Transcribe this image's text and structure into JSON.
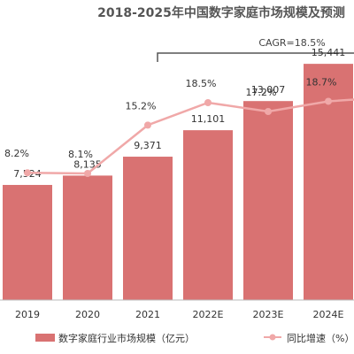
{
  "chart_data": {
    "type": "bar+line",
    "title": "2018-2025年中国数字家庭市场规模及预测",
    "categories": [
      "2019",
      "2020",
      "2021",
      "2022E",
      "2023E",
      "2024E"
    ],
    "series": [
      {
        "name": "数字家庭行业市场规模（亿元）",
        "type": "bar",
        "values": [
          7524,
          8135,
          9371,
          11101,
          13007,
          15441
        ],
        "value_labels": [
          "7,524",
          "8,135",
          "9,371",
          "11,101",
          "13,007",
          "15,441"
        ],
        "color": "#d97272"
      },
      {
        "name": "同比增速（%）",
        "type": "line",
        "values": [
          8.2,
          8.1,
          15.2,
          18.5,
          17.2,
          18.7
        ],
        "value_labels": [
          "8.2%",
          "8.1%",
          "15.2%",
          "18.5%",
          "17.2%",
          "18.7%"
        ],
        "color": "#f0a8a8"
      }
    ],
    "annotation": "CAGR=18.5%",
    "grid": false,
    "legend": "bottom"
  }
}
